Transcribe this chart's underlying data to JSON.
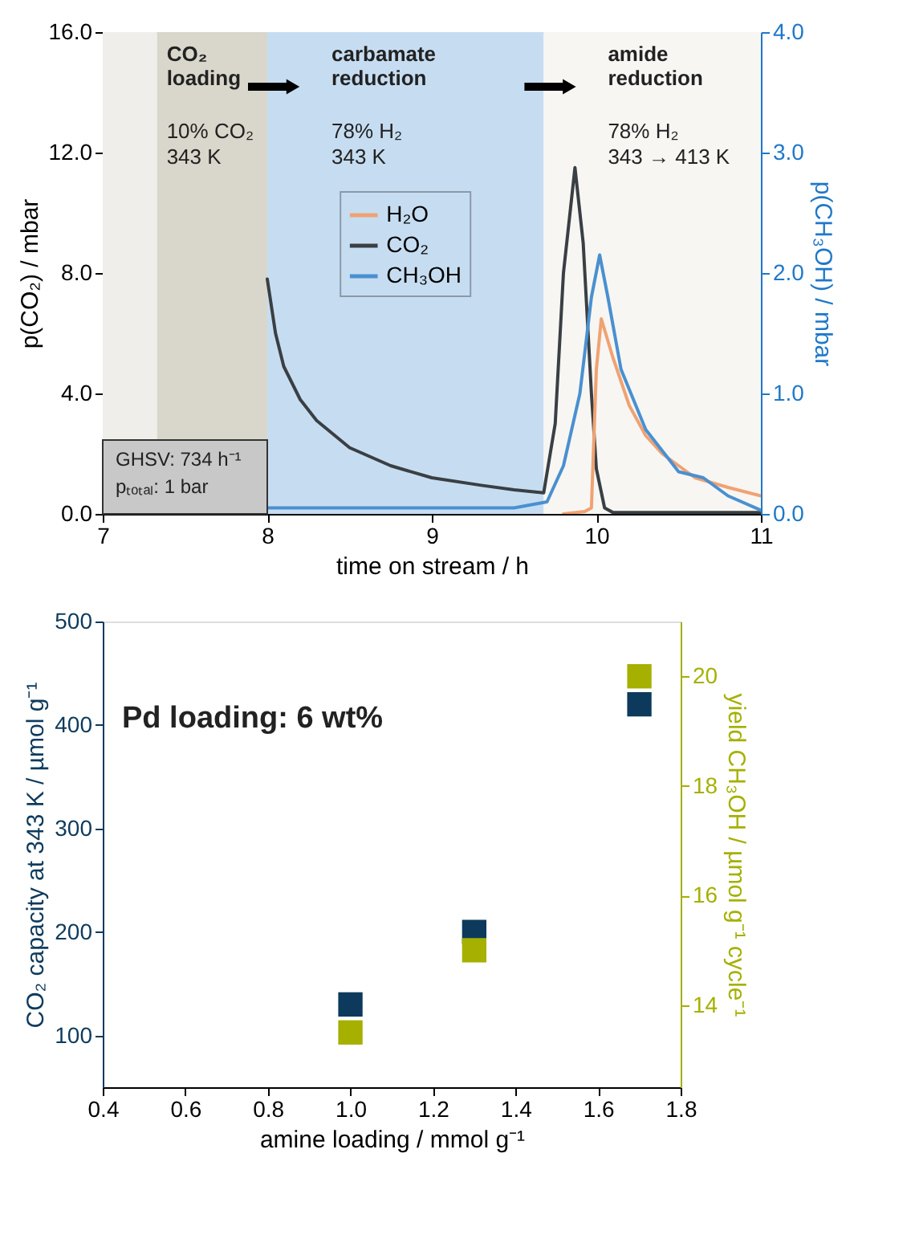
{
  "chart_data": [
    {
      "type": "line",
      "xlabel": "time on stream / h",
      "ylabel": "p(CO₂) / mbar",
      "y2label": "p(CH₃OH) / mbar",
      "xlim": [
        7,
        11
      ],
      "xticks": [
        7,
        8,
        9,
        10,
        11
      ],
      "ylim": [
        0,
        16
      ],
      "yticks": [
        {
          "value": 0,
          "label": "0.0"
        },
        {
          "value": 4,
          "label": "4.0"
        },
        {
          "value": 8,
          "label": "8.0"
        },
        {
          "value": 12,
          "label": "12.0"
        },
        {
          "value": 16,
          "label": "16.0"
        }
      ],
      "y2lim": [
        0,
        4
      ],
      "y2ticks": [
        {
          "value": 0,
          "label": "0.0"
        },
        {
          "value": 1,
          "label": "1.0"
        },
        {
          "value": 2,
          "label": "2.0"
        },
        {
          "value": 3,
          "label": "3.0"
        },
        {
          "value": 4,
          "label": "4.0"
        }
      ],
      "legend": "top",
      "bands": [
        {
          "axis": "x",
          "from": 7,
          "to": 7.33,
          "color": "#efeeea"
        },
        {
          "axis": "x",
          "from": 7.33,
          "to": 8,
          "label": "CO₂ loading",
          "color": "#d9d6cb"
        },
        {
          "axis": "x",
          "from": 8,
          "to": 9.68,
          "label": "carbamate reduction",
          "color": "#c6ddf1"
        },
        {
          "axis": "x",
          "from": 9.68,
          "to": 11,
          "label": "amide reduction",
          "color": "#f7f6f3"
        }
      ],
      "annotations": [
        "10% CO₂",
        "343 K",
        "78% H₂",
        "343 K",
        "78% H₂",
        "343 → 413 K",
        "GHSV: 734 h⁻¹",
        "pₜₒₜₐₗ: 1 bar"
      ],
      "series": [
        {
          "name": "H₂O",
          "color": "#f0a272",
          "axis": "y2",
          "x": [
            9.8,
            9.93,
            9.97,
            10.0,
            10.03,
            10.1,
            10.2,
            10.3,
            10.4,
            10.6,
            10.8,
            11.0
          ],
          "values": [
            0.0,
            0.02,
            0.05,
            1.2,
            1.62,
            1.3,
            0.9,
            0.65,
            0.5,
            0.3,
            0.22,
            0.15
          ]
        },
        {
          "name": "CO₂",
          "color": "#3a3f44",
          "x": [
            8.0,
            8.05,
            8.1,
            8.2,
            8.3,
            8.5,
            8.75,
            9.0,
            9.3,
            9.5,
            9.68,
            9.75,
            9.8,
            9.87,
            9.92,
            9.97,
            10.0,
            10.05,
            10.1,
            10.5,
            11.0
          ],
          "values": [
            7.8,
            6.0,
            4.9,
            3.8,
            3.1,
            2.2,
            1.6,
            1.2,
            0.95,
            0.8,
            0.7,
            3.0,
            8.0,
            11.5,
            9.0,
            4.0,
            1.5,
            0.2,
            0.05,
            0.05,
            0.05
          ]
        },
        {
          "name": "CH₃OH",
          "color": "#4a90d0",
          "axis": "y2",
          "x": [
            8.0,
            8.5,
            9.0,
            9.5,
            9.7,
            9.8,
            9.9,
            9.97,
            10.02,
            10.07,
            10.15,
            10.3,
            10.5,
            10.65,
            10.8,
            11.0
          ],
          "values": [
            0.05,
            0.05,
            0.05,
            0.05,
            0.1,
            0.4,
            1.0,
            1.8,
            2.15,
            1.8,
            1.2,
            0.7,
            0.35,
            0.3,
            0.15,
            0.03
          ]
        }
      ]
    },
    {
      "type": "scatter",
      "xlabel": "amine loading  / mmol g⁻¹",
      "ylabel": "CO₂ capacity at 343 K / µmol g⁻¹",
      "y2label": "yield CH₃OH / µmol  g⁻¹ cycle⁻¹",
      "xlim": [
        0.4,
        1.8
      ],
      "xticks": [
        0.4,
        0.6,
        0.8,
        {
          "value": 1.0,
          "label": "1.0"
        },
        1.2,
        1.4,
        1.6,
        1.8
      ],
      "ylim": [
        50,
        500
      ],
      "yticks": [
        100,
        200,
        300,
        400,
        500
      ],
      "y2lim": [
        12.5,
        21
      ],
      "y2ticks": [
        14,
        16,
        18,
        20
      ],
      "marker": "square",
      "annotations": [
        "Pd loading: 6 wt%"
      ],
      "series": [
        {
          "color": "#0d3a5c",
          "x": [
            1.0,
            1.3,
            1.7
          ],
          "values": [
            130,
            200,
            420
          ]
        },
        {
          "color": "#a5b000",
          "axis": "y2",
          "x": [
            1.0,
            1.3,
            1.7
          ],
          "values": [
            13.5,
            15.0,
            20.0
          ]
        }
      ]
    }
  ]
}
